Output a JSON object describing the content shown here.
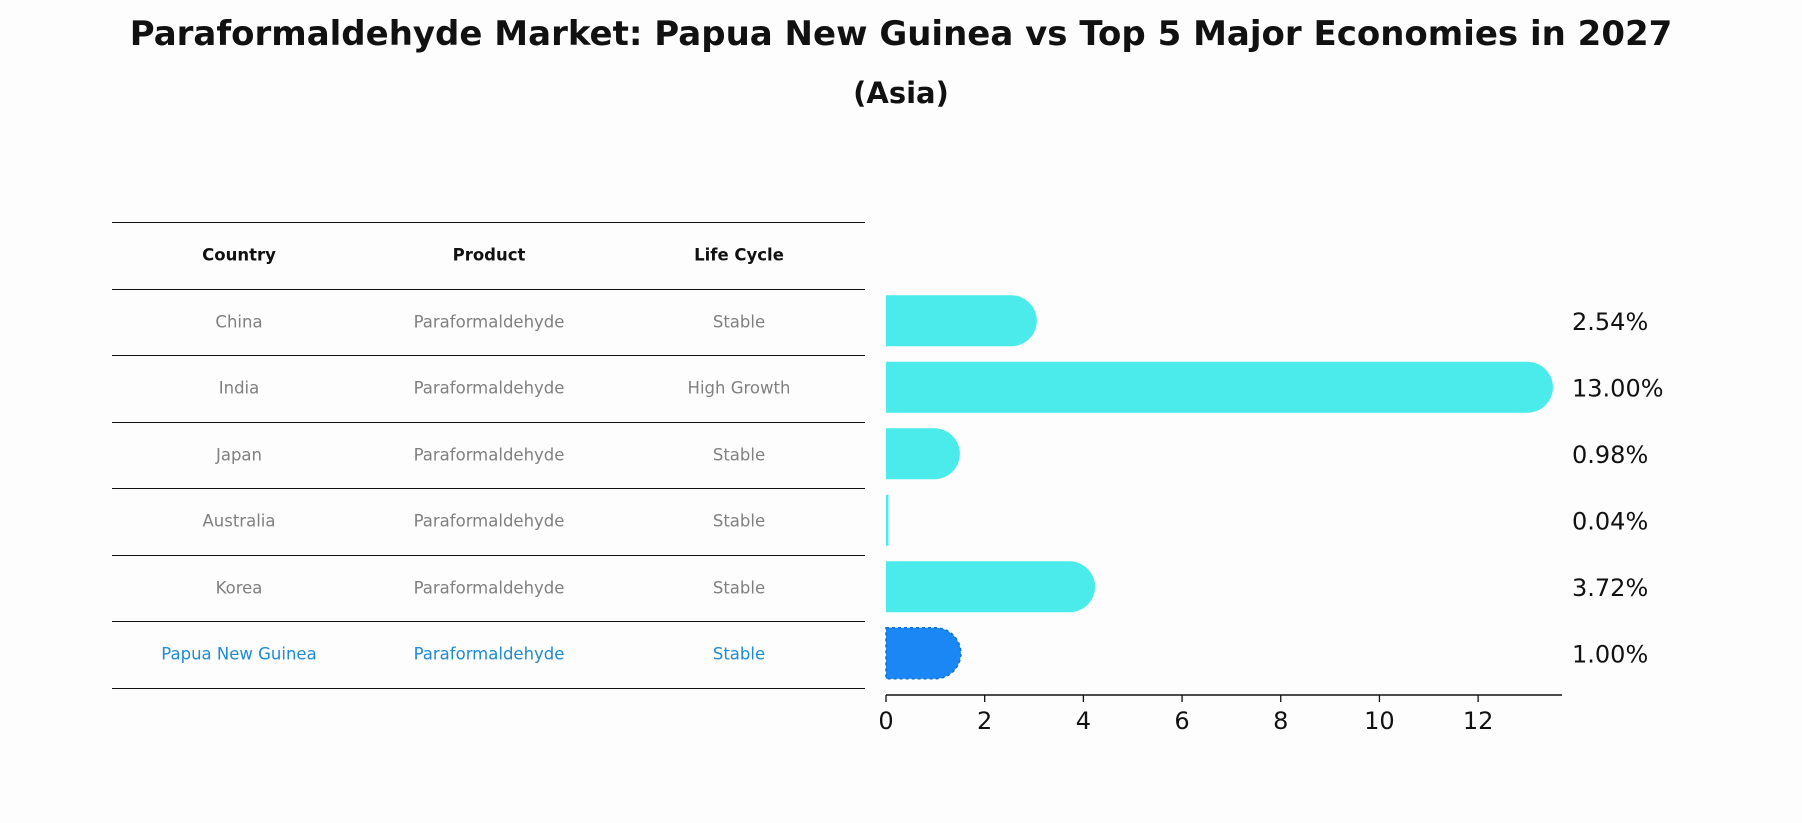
{
  "title": "Paraformaldehyde Market: Papua New Guinea vs Top 5 Major Economies in 2027",
  "subtitle": "(Asia)",
  "table": {
    "columns": [
      "Country",
      "Product",
      "Life Cycle"
    ],
    "rows": [
      {
        "country": "China",
        "product": "Paraformaldehyde",
        "life_cycle": "Stable",
        "highlight": false
      },
      {
        "country": "India",
        "product": "Paraformaldehyde",
        "life_cycle": "High Growth",
        "highlight": false
      },
      {
        "country": "Japan",
        "product": "Paraformaldehyde",
        "life_cycle": "Stable",
        "highlight": false
      },
      {
        "country": "Australia",
        "product": "Paraformaldehyde",
        "life_cycle": "Stable",
        "highlight": false
      },
      {
        "country": "Korea",
        "product": "Paraformaldehyde",
        "life_cycle": "Stable",
        "highlight": false
      },
      {
        "country": "Papua New Guinea",
        "product": "Paraformaldehyde",
        "life_cycle": "Stable",
        "highlight": true
      }
    ]
  },
  "chart_data": {
    "type": "bar",
    "orientation": "horizontal",
    "categories": [
      "China",
      "India",
      "Japan",
      "Australia",
      "Korea",
      "Papua New Guinea"
    ],
    "values": [
      2.54,
      13.0,
      0.98,
      0.04,
      3.72,
      1.0
    ],
    "value_labels": [
      "2.54%",
      "13.00%",
      "0.98%",
      "0.04%",
      "3.72%",
      "1.00%"
    ],
    "xlim": [
      0,
      13.7
    ],
    "xticks": [
      0,
      2,
      4,
      6,
      8,
      10,
      12
    ],
    "xlabel": "",
    "ylabel": "",
    "grid": false,
    "colors": {
      "default": "#4aebea",
      "highlight": "#1a87f5"
    }
  }
}
